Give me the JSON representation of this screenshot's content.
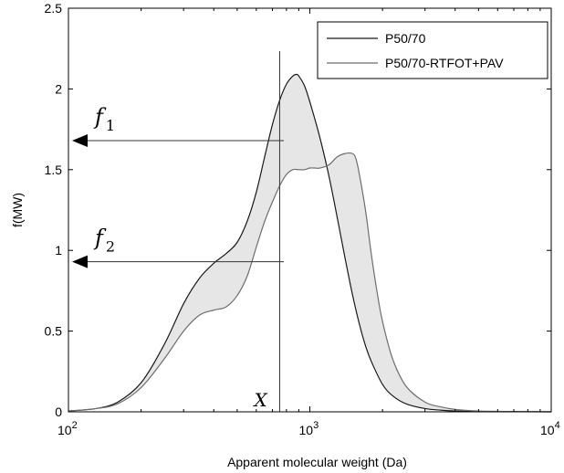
{
  "chart_data": {
    "type": "area",
    "xscale": "log",
    "xlim": [
      100,
      10000
    ],
    "ylim": [
      0,
      2.5
    ],
    "xlabel": "Apparent molecular weight (Da)",
    "ylabel": "f(MW)",
    "xtick_base": "10",
    "xticks": [
      {
        "value": 100,
        "exp": "2"
      },
      {
        "value": 1000,
        "exp": "3"
      },
      {
        "value": 10000,
        "exp": "4"
      }
    ],
    "yticks": [
      {
        "value": 0,
        "label": "0"
      },
      {
        "value": 0.5,
        "label": "0.5"
      },
      {
        "value": 1,
        "label": "1"
      },
      {
        "value": 1.5,
        "label": "1.5"
      },
      {
        "value": 2,
        "label": "2"
      },
      {
        "value": 2.5,
        "label": "2.5"
      }
    ],
    "legend_position": "top-right",
    "fill_between": {
      "color": "#e6e6e6"
    },
    "series": [
      {
        "name": "P50/70",
        "color": "#1a1a1a",
        "x": [
          100,
          130,
          160,
          200,
          250,
          300,
          350,
          400,
          450,
          500,
          550,
          600,
          650,
          700,
          750,
          800,
          850,
          880,
          900,
          950,
          1000,
          1100,
          1200,
          1300,
          1400,
          1500,
          1600,
          1700,
          1800,
          2000,
          2200,
          2500,
          3000,
          3500,
          4000,
          5000,
          7000,
          10000
        ],
        "y": [
          0.005,
          0.02,
          0.06,
          0.18,
          0.42,
          0.67,
          0.83,
          0.92,
          0.98,
          1.05,
          1.18,
          1.36,
          1.58,
          1.78,
          1.93,
          2.03,
          2.08,
          2.09,
          2.08,
          2.02,
          1.92,
          1.7,
          1.46,
          1.2,
          0.95,
          0.73,
          0.55,
          0.41,
          0.31,
          0.17,
          0.1,
          0.05,
          0.02,
          0.01,
          0.005,
          0.002,
          0.001,
          0.0
        ]
      },
      {
        "name": "P50/70-RTFOT+PAV",
        "color": "#6e6e6e",
        "x": [
          100,
          130,
          160,
          200,
          250,
          300,
          350,
          400,
          450,
          500,
          550,
          600,
          650,
          700,
          750,
          800,
          850,
          900,
          950,
          1000,
          1050,
          1100,
          1200,
          1300,
          1400,
          1500,
          1550,
          1600,
          1700,
          1800,
          1900,
          2000,
          2200,
          2500,
          3000,
          3500,
          4000,
          5000,
          7000,
          10000
        ],
        "y": [
          0.005,
          0.02,
          0.05,
          0.15,
          0.33,
          0.5,
          0.6,
          0.63,
          0.65,
          0.72,
          0.84,
          1.02,
          1.18,
          1.3,
          1.4,
          1.47,
          1.5,
          1.5,
          1.5,
          1.51,
          1.51,
          1.51,
          1.53,
          1.58,
          1.6,
          1.6,
          1.57,
          1.48,
          1.25,
          0.97,
          0.74,
          0.56,
          0.33,
          0.16,
          0.06,
          0.03,
          0.015,
          0.005,
          0.002,
          0.0
        ]
      }
    ],
    "reference_line": {
      "x": 750,
      "label": "X"
    },
    "annotations": [
      {
        "symbol": "f",
        "subscript": "1",
        "y": 1.68,
        "x_end": 780
      },
      {
        "symbol": "f",
        "subscript": "2",
        "y": 0.93,
        "x_end": 780
      }
    ]
  }
}
